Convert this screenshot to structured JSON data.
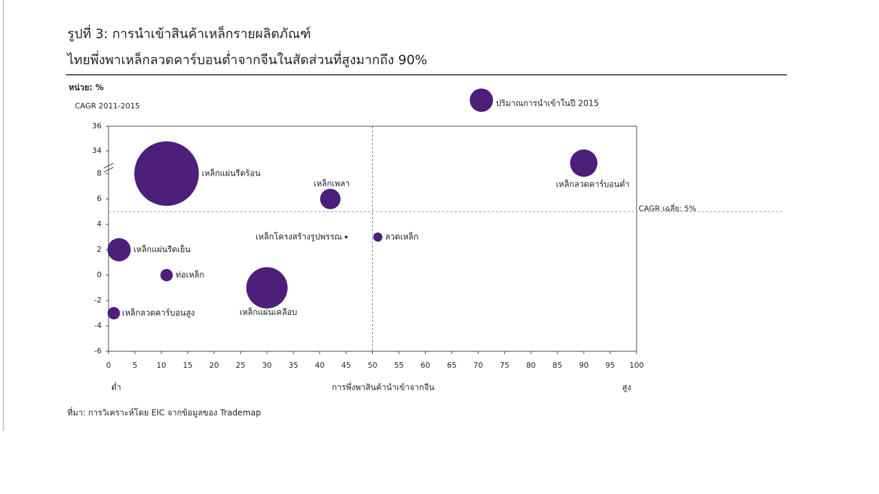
{
  "chart_data": {
    "type": "bubble",
    "title": "รูปที่ 3: การนำเข้าสินค้าเหล็กรายผลิตภัณฑ์",
    "subtitle": "ไทยพึ่งพาเหล็กลวดคาร์บอนต่ำจากจีนในสัดส่วนที่สูงมากถึง 90%",
    "unit_label": "หน่วย: %",
    "y_label": "CAGR 2011-2015",
    "x_label": "การพึ่งพาสินค้านำเข้าจากจีน",
    "x_low_label": "ต่ำ",
    "x_high_label": "สูง",
    "size_legend": "ปริมาณการนำเข้าในปี  2015",
    "source": "ที่มา: การวิเคราะห์โดย EIC จากข้อมูลของ Trademap",
    "color": "#4b1f7a",
    "xlim": [
      0,
      100
    ],
    "xticks": [
      0,
      5,
      10,
      15,
      20,
      25,
      30,
      35,
      40,
      45,
      50,
      55,
      60,
      65,
      70,
      75,
      80,
      85,
      90,
      95,
      100
    ],
    "ylim": [
      -6,
      36
    ],
    "ybreak": [
      8,
      34
    ],
    "yticks": [
      -6,
      -4,
      -2,
      0,
      2,
      4,
      6,
      8,
      34,
      36
    ],
    "x_reference": 50,
    "y_reference": 5,
    "y_reference_label": "CAGR เฉลี่ย: 5%",
    "points": [
      {
        "label": "เหล็กแผ่นรีดร้อน",
        "x": 11,
        "y": 8,
        "size": 100
      },
      {
        "label": "เหล็กลวดคาร์บอนต่ำ",
        "x": 90,
        "y": 20,
        "size": 18
      },
      {
        "label": "เหล็กเพลา",
        "x": 42,
        "y": 6,
        "size": 10
      },
      {
        "label": "เหล็กโครงสร้างรูปพรรณ",
        "x": 45,
        "y": 3,
        "size": 0.2
      },
      {
        "label": "ลวดเหล็ก",
        "x": 51,
        "y": 3,
        "size": 2
      },
      {
        "label": "เหล็กแผ่นรีดเย็น",
        "x": 2,
        "y": 2,
        "size": 13
      },
      {
        "label": "ท่อเหล็ก",
        "x": 11,
        "y": 0,
        "size": 3.7
      },
      {
        "label": "เหล็กแผ่นเคลือบ",
        "x": 30,
        "y": -1,
        "size": 41
      },
      {
        "label": "เหล็กลวดคาร์บอนสูง",
        "x": 1,
        "y": -3,
        "size": 3.7
      }
    ]
  }
}
